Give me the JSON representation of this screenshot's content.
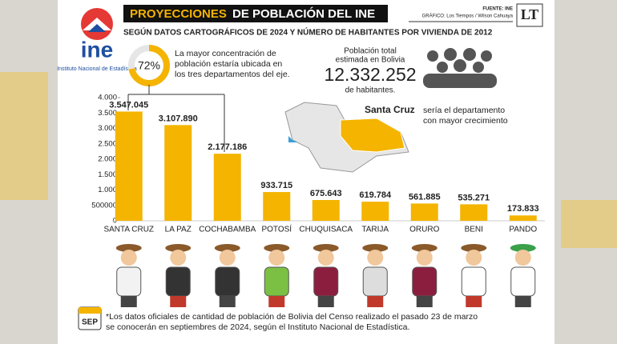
{
  "chart_data": {
    "type": "bar",
    "title_highlight": "PROYECCIONES",
    "title_rest": "DE POBLACIÓN DEL INE",
    "subtitle": "SEGÚN DATOS CARTOGRÁFICOS DE 2024 Y NÚMERO DE HABITANTES POR VIVIENDA DE 2012",
    "source": "FUENTE: INE",
    "graphic": "GRÁFICO: Los Tiempos / Wilson Cahuaya",
    "brand": "LT",
    "logo_text": "ine",
    "logo_caption": "Instituto Nacional de Estadística",
    "share_label": "72%",
    "share_text": [
      "La mayor concentración de",
      "población estaría ubicada en",
      "los tres departamentos del eje."
    ],
    "total_text": [
      "Población total",
      "estimada en Bolivia"
    ],
    "total_value": "12.332.252",
    "total_unit": "de habitantes.",
    "map_note_bold": "Santa Cruz",
    "map_note": [
      "sería el departamento",
      "con mayor crecimiento"
    ],
    "calendar_label": "SEP",
    "footnote": [
      "*Los datos oficiales de cantidad de población de Bolivia del Censo realizado el pasado 23 de marzo",
      "se conocerán en septiembres de 2024, según el Instituto Nacional de Estadística."
    ],
    "categories": [
      "SANTA CRUZ",
      "LA PAZ",
      "COCHABAMBA",
      "POTOSÍ",
      "CHUQUISACA",
      "TARIJA",
      "ORURO",
      "BENI",
      "PANDO"
    ],
    "values": [
      3547045,
      3107890,
      2177186,
      933715,
      675643,
      619784,
      561885,
      535271,
      173833
    ],
    "value_labels": [
      "3.547.045",
      "3.107.890",
      "2.177.186",
      "933.715",
      "675.643",
      "619.784",
      "561.885",
      "535.271",
      "173.833"
    ],
    "color": "#f4b400",
    "ylim": [
      0,
      4000000
    ],
    "yticks": [
      0,
      500000,
      {
        "value": 1000000,
        "label": "1.000"
      },
      {
        "value": 1500000,
        "label": "1.500"
      },
      {
        "value": 2000000,
        "label": "2.000"
      },
      {
        "value": 2500000,
        "label": "2.500"
      },
      {
        "value": 3000000,
        "label": "3.000"
      },
      {
        "value": 3500000,
        "label": "3.500"
      },
      {
        "value": 4000000,
        "label": "4.000"
      }
    ],
    "ytick_label_500": "500"
  }
}
